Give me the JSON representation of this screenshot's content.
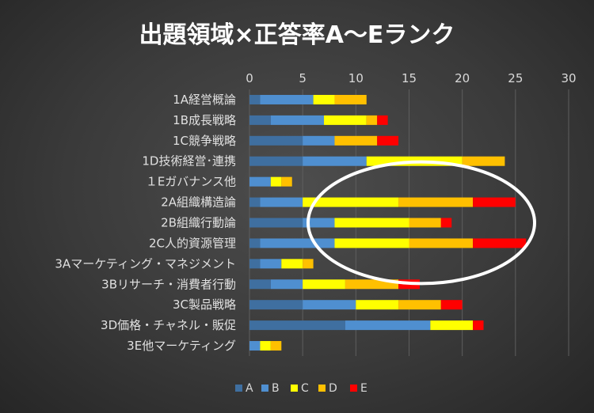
{
  "chart_data": {
    "type": "bar",
    "orientation": "horizontal",
    "stacked": true,
    "title": "出題領域×正答率A～Eランク",
    "xlim": [
      0,
      30
    ],
    "x_ticks": [
      0,
      5,
      10,
      15,
      20,
      25,
      30
    ],
    "grid": true,
    "legend_position": "bottom",
    "categories": [
      "1A経営概論",
      "1B成長戦略",
      "1C競争戦略",
      "1D技術経営･連携",
      "１Eガバナンス他",
      "2A組織構造論",
      "2B組織行動論",
      "2C人的資源管理",
      "3Aマーケティング・マネジメント",
      "3Bリサーチ・消費者行動",
      "3C製品戦略",
      "3D価格・チャネル・販促",
      "3E他マーケティング"
    ],
    "series": [
      {
        "name": "A",
        "color": "#3f6fa0",
        "values": [
          1,
          2,
          5,
          5,
          0,
          1,
          5,
          1,
          1,
          2,
          5,
          9,
          0
        ]
      },
      {
        "name": "B",
        "color": "#4f8fd0",
        "values": [
          5,
          5,
          3,
          6,
          2,
          4,
          3,
          7,
          2,
          3,
          5,
          8,
          1
        ]
      },
      {
        "name": "C",
        "color": "#ffff00",
        "values": [
          2,
          4,
          0,
          9,
          1,
          9,
          7,
          7,
          2,
          4,
          4,
          4,
          1
        ]
      },
      {
        "name": "D",
        "color": "#ffc000",
        "values": [
          3,
          1,
          4,
          4,
          1,
          7,
          3,
          6,
          1,
          5,
          4,
          0,
          1
        ]
      },
      {
        "name": "E",
        "color": "#ff0000",
        "values": [
          0,
          1,
          2,
          0,
          0,
          4,
          1,
          5,
          0,
          2,
          2,
          1,
          0
        ]
      }
    ],
    "annotation": {
      "shape": "ellipse",
      "color": "#ffffff",
      "highlights": [
        "2A組織構造論",
        "2B組織行動論",
        "2C人的資源管理"
      ]
    }
  }
}
